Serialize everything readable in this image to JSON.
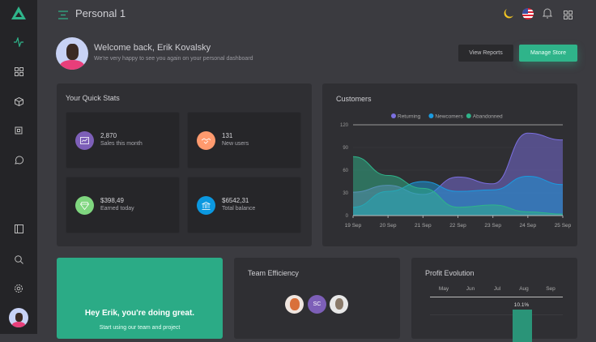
{
  "header": {
    "title": "Personal 1"
  },
  "welcome": {
    "title": "Welcome back, Erik Kovalsky",
    "subtitle": "We're very happy to see you again on your personal dashboard",
    "view_reports": "View Reports",
    "manage_store": "Manage Store"
  },
  "sidebar": {
    "icons": [
      "activity-icon",
      "grid-icon",
      "box-icon",
      "cpu-icon",
      "message-icon",
      "layout-icon",
      "search-icon",
      "settings-icon"
    ]
  },
  "quick_stats": {
    "title": "Your Quick Stats",
    "items": [
      {
        "value": "2,870",
        "label": "Sales this month",
        "color": "#7d5fb8",
        "icon": "chart-icon"
      },
      {
        "value": "131",
        "label": "New users",
        "color": "#ff9a6e",
        "icon": "handshake-icon"
      },
      {
        "value": "$398,49",
        "label": "Earned today",
        "color": "#7fd67f",
        "icon": "diamond-icon"
      },
      {
        "value": "$6542,31",
        "label": "Total balance",
        "color": "#0b98e0",
        "icon": "bank-icon"
      }
    ]
  },
  "customers": {
    "title": "Customers"
  },
  "chart_data": {
    "type": "area",
    "title": "Customers",
    "categories": [
      "19 Sep",
      "20 Sep",
      "21 Sep",
      "22 Sep",
      "23 Sep",
      "24 Sep",
      "25 Sep"
    ],
    "ylim": [
      0,
      120
    ],
    "yticks": [
      "0",
      "30",
      "60",
      "90",
      "120"
    ],
    "legend": "top",
    "series": [
      {
        "name": "Returning",
        "color": "#7b6fe0",
        "values": [
          31,
          40,
          28,
          51,
          42,
          109,
          100
        ]
      },
      {
        "name": "Newcomers",
        "color": "#1a9be0",
        "values": [
          11,
          32,
          45,
          32,
          34,
          52,
          41
        ]
      },
      {
        "name": "Abandonned",
        "color": "#2fb48a",
        "values": [
          78,
          53,
          36,
          11,
          14,
          5,
          2
        ]
      }
    ]
  },
  "promo": {
    "title": "Hey Erik, you're doing great.",
    "text": "Start using our team and project"
  },
  "team": {
    "title": "Team Efficiency",
    "initials": "SC"
  },
  "profit": {
    "title": "Profit Evolution",
    "months": [
      "May",
      "Jun",
      "Jul",
      "Aug",
      "Sep"
    ],
    "highlight_label": "10.1%"
  }
}
